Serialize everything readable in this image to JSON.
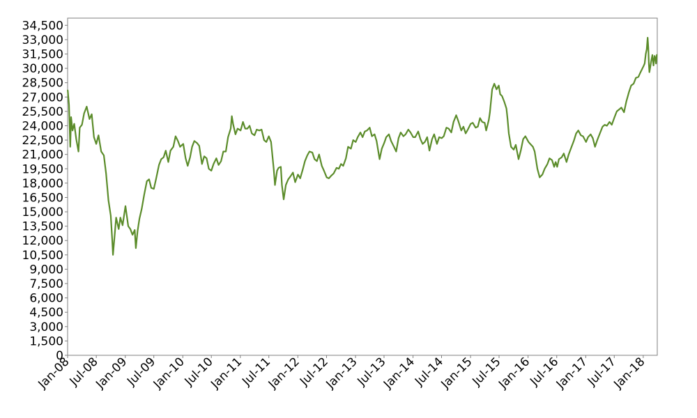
{
  "chart_data": {
    "type": "line",
    "title": "",
    "xlabel": "",
    "ylabel": "",
    "xlim": [
      "2008-01-01",
      "2018-03-31"
    ],
    "ylim": [
      0,
      35250
    ],
    "y_ticks": [
      0,
      1500,
      3000,
      4500,
      6000,
      7500,
      9000,
      10500,
      12000,
      13500,
      15000,
      16500,
      18000,
      19500,
      21000,
      22500,
      24000,
      25500,
      27000,
      28500,
      30000,
      31500,
      33000,
      34500
    ],
    "y_tick_labels": [
      "0",
      "1,500",
      "3,000",
      "4,500",
      "6,000",
      "7,500",
      "9,000",
      "10,500",
      "12,000",
      "13,500",
      "15,000",
      "16,500",
      "18,000",
      "19,500",
      "21,000",
      "22,500",
      "24,000",
      "25,500",
      "27,000",
      "28,500",
      "30,000",
      "31,500",
      "33,000",
      "34,500"
    ],
    "x_ticks": [
      "2008-01-01",
      "2008-07-01",
      "2009-01-01",
      "2009-07-01",
      "2010-01-01",
      "2010-07-01",
      "2011-01-01",
      "2011-07-01",
      "2012-01-01",
      "2012-07-01",
      "2013-01-01",
      "2013-07-01",
      "2014-01-01",
      "2014-07-01",
      "2015-01-01",
      "2015-07-01",
      "2016-01-01",
      "2016-07-01",
      "2017-01-01",
      "2017-07-01",
      "2018-01-01"
    ],
    "x_tick_labels": [
      "Jan-08",
      "Jul-08",
      "Jan-09",
      "Jul-09",
      "Jan-10",
      "Jul-10",
      "Jan-11",
      "Jul-11",
      "Jan-12",
      "Jul-12",
      "Jan-13",
      "Jul-13",
      "Jan-14",
      "Jul-14",
      "Jan-15",
      "Jul-15",
      "Jan-16",
      "Jul-16",
      "Jan-17",
      "Jul-17",
      "Jan-18"
    ],
    "grid": false,
    "legend": "none",
    "line_color": "#5b8c2a",
    "series": [
      {
        "x": [
          "2008-01-02",
          "2008-01-10",
          "2008-01-18",
          "2008-01-23",
          "2008-02-01",
          "2008-02-12",
          "2008-02-25",
          "2008-03-10",
          "2008-03-18",
          "2008-04-01",
          "2008-04-15",
          "2008-05-01",
          "2008-05-19",
          "2008-06-02",
          "2008-06-16",
          "2008-07-01",
          "2008-07-15",
          "2008-08-01",
          "2008-08-18",
          "2008-09-01",
          "2008-09-16",
          "2008-10-01",
          "2008-10-10",
          "2008-10-15",
          "2008-10-27",
          "2008-11-04",
          "2008-11-20",
          "2008-12-01",
          "2008-12-15",
          "2009-01-02",
          "2009-01-20",
          "2009-02-02",
          "2009-02-16",
          "2009-03-02",
          "2009-03-09",
          "2009-03-20",
          "2009-04-01",
          "2009-04-15",
          "2009-05-01",
          "2009-05-18",
          "2009-06-01",
          "2009-06-15",
          "2009-07-01",
          "2009-07-15",
          "2009-08-03",
          "2009-08-17",
          "2009-09-01",
          "2009-09-15",
          "2009-10-01",
          "2009-10-15",
          "2009-11-02",
          "2009-11-16",
          "2009-12-01",
          "2009-12-15",
          "2010-01-04",
          "2010-01-19",
          "2010-02-01",
          "2010-02-16",
          "2010-03-01",
          "2010-03-15",
          "2010-04-01",
          "2010-04-15",
          "2010-05-03",
          "2010-05-17",
          "2010-06-01",
          "2010-06-15",
          "2010-07-01",
          "2010-07-15",
          "2010-08-02",
          "2010-08-16",
          "2010-09-01",
          "2010-09-15",
          "2010-10-01",
          "2010-10-15",
          "2010-11-01",
          "2010-11-08",
          "2010-11-16",
          "2010-12-01",
          "2010-12-15",
          "2011-01-03",
          "2011-01-18",
          "2011-02-01",
          "2011-02-15",
          "2011-03-01",
          "2011-03-15",
          "2011-04-01",
          "2011-04-15",
          "2011-05-02",
          "2011-05-16",
          "2011-06-01",
          "2011-06-15",
          "2011-07-01",
          "2011-07-15",
          "2011-08-01",
          "2011-08-09",
          "2011-08-22",
          "2011-09-01",
          "2011-09-15",
          "2011-09-22",
          "2011-10-03",
          "2011-10-17",
          "2011-11-01",
          "2011-11-15",
          "2011-12-01",
          "2011-12-15",
          "2012-01-02",
          "2012-01-16",
          "2012-02-01",
          "2012-02-15",
          "2012-03-01",
          "2012-03-15",
          "2012-04-02",
          "2012-04-16",
          "2012-05-01",
          "2012-05-15",
          "2012-06-01",
          "2012-06-15",
          "2012-07-02",
          "2012-07-16",
          "2012-08-01",
          "2012-08-15",
          "2012-09-03",
          "2012-09-17",
          "2012-10-01",
          "2012-10-15",
          "2012-11-01",
          "2012-11-15",
          "2012-12-03",
          "2012-12-17",
          "2013-01-02",
          "2013-01-15",
          "2013-02-01",
          "2013-02-15",
          "2013-03-01",
          "2013-03-15",
          "2013-04-01",
          "2013-04-15",
          "2013-05-02",
          "2013-05-15",
          "2013-06-03",
          "2013-06-17",
          "2013-07-02",
          "2013-07-15",
          "2013-08-01",
          "2013-08-15",
          "2013-09-02",
          "2013-09-16",
          "2013-10-01",
          "2013-10-15",
          "2013-11-01",
          "2013-11-15",
          "2013-12-02",
          "2013-12-16",
          "2014-01-02",
          "2014-01-15",
          "2014-02-03",
          "2014-02-17",
          "2014-03-03",
          "2014-03-17",
          "2014-04-01",
          "2014-04-15",
          "2014-05-02",
          "2014-05-15",
          "2014-06-02",
          "2014-06-16",
          "2014-07-02",
          "2014-07-15",
          "2014-08-01",
          "2014-08-15",
          "2014-09-01",
          "2014-09-15",
          "2014-10-02",
          "2014-10-15",
          "2014-11-03",
          "2014-11-17",
          "2014-12-01",
          "2014-12-15",
          "2015-01-02",
          "2015-01-15",
          "2015-02-02",
          "2015-02-16",
          "2015-03-02",
          "2015-03-16",
          "2015-04-01",
          "2015-04-10",
          "2015-04-27",
          "2015-05-04",
          "2015-05-18",
          "2015-06-01",
          "2015-06-15",
          "2015-06-29",
          "2015-07-08",
          "2015-07-20",
          "2015-08-03",
          "2015-08-17",
          "2015-08-24",
          "2015-09-01",
          "2015-09-15",
          "2015-10-02",
          "2015-10-15",
          "2015-11-02",
          "2015-11-16",
          "2015-12-01",
          "2015-12-15",
          "2016-01-04",
          "2016-01-15",
          "2016-02-01",
          "2016-02-12",
          "2016-02-29",
          "2016-03-15",
          "2016-04-01",
          "2016-04-15",
          "2016-05-03",
          "2016-05-16",
          "2016-06-01",
          "2016-06-15",
          "2016-06-24",
          "2016-07-04",
          "2016-07-15",
          "2016-08-01",
          "2016-08-15",
          "2016-09-01",
          "2016-09-15",
          "2016-10-03",
          "2016-10-17",
          "2016-11-01",
          "2016-11-15",
          "2016-12-01",
          "2016-12-15",
          "2017-01-03",
          "2017-01-16",
          "2017-02-01",
          "2017-02-15",
          "2017-03-01",
          "2017-03-15",
          "2017-04-03",
          "2017-04-18",
          "2017-05-02",
          "2017-05-15",
          "2017-06-01",
          "2017-06-15",
          "2017-07-03",
          "2017-07-17",
          "2017-08-01",
          "2017-08-15",
          "2017-09-01",
          "2017-09-15",
          "2017-10-02",
          "2017-10-16",
          "2017-11-01",
          "2017-11-15",
          "2017-12-01",
          "2017-12-15",
          "2018-01-02",
          "2018-01-10",
          "2018-01-17",
          "2018-01-23",
          "2018-01-29",
          "2018-02-02",
          "2018-02-06",
          "2018-02-09",
          "2018-02-15",
          "2018-02-21",
          "2018-02-28",
          "2018-03-07",
          "2018-03-14",
          "2018-03-20",
          "2018-03-23",
          "2018-03-28"
        ],
        "y": [
          27700,
          26200,
          21800,
          24900,
          23500,
          24200,
          22600,
          21300,
          23800,
          24100,
          25300,
          26000,
          24700,
          25200,
          22800,
          22100,
          23000,
          21300,
          20900,
          19000,
          16200,
          14600,
          12100,
          10500,
          12800,
          14400,
          13200,
          14400,
          13600,
          15600,
          13500,
          13200,
          12600,
          13100,
          11200,
          13000,
          14300,
          15300,
          16800,
          18200,
          18400,
          17500,
          17400,
          18400,
          19900,
          20500,
          20700,
          21400,
          20200,
          21400,
          21800,
          22900,
          22400,
          21800,
          22100,
          20600,
          19800,
          20700,
          21800,
          22400,
          22200,
          21900,
          20000,
          20800,
          20600,
          19500,
          19300,
          20000,
          20600,
          19900,
          20300,
          21300,
          21300,
          22800,
          23700,
          25000,
          24200,
          23100,
          23700,
          23500,
          24400,
          23700,
          23700,
          24000,
          23200,
          23000,
          23600,
          23500,
          23600,
          22500,
          22300,
          22900,
          22300,
          19500,
          17800,
          19300,
          19600,
          19700,
          17800,
          16300,
          17800,
          18400,
          18700,
          19100,
          18100,
          18900,
          18500,
          19400,
          20300,
          20900,
          21300,
          21200,
          20500,
          20300,
          21000,
          19800,
          19300,
          18600,
          18500,
          18800,
          19000,
          19600,
          19500,
          20000,
          19800,
          20600,
          21800,
          21600,
          22500,
          22300,
          22800,
          23300,
          22800,
          23400,
          23500,
          23800,
          22900,
          23100,
          22400,
          20500,
          21600,
          22200,
          22800,
          23100,
          22400,
          21800,
          21300,
          22700,
          23300,
          22900,
          23100,
          23600,
          23300,
          22800,
          22800,
          23400,
          22600,
          22100,
          22300,
          22800,
          21400,
          22600,
          23100,
          22100,
          22800,
          22700,
          22900,
          23800,
          23700,
          23300,
          24400,
          25100,
          24500,
          23500,
          23900,
          23200,
          23600,
          24200,
          24300,
          23800,
          23900,
          24800,
          24400,
          24300,
          23500,
          24600,
          25400,
          27800,
          28400,
          27800,
          28200,
          27300,
          27100,
          26500,
          25800,
          24700,
          23200,
          21800,
          21500,
          22000,
          20500,
          21400,
          22600,
          22900,
          22300,
          22100,
          21800,
          21300,
          19500,
          18600,
          18900,
          19500,
          20000,
          20600,
          20400,
          19700,
          20200,
          19700,
          20500,
          20700,
          21100,
          20200,
          21000,
          21800,
          22400,
          23200,
          23500,
          23000,
          22900,
          22300,
          22800,
          23100,
          22700,
          21800,
          22500,
          23300,
          23900,
          24100,
          24000,
          24400,
          24100,
          24900,
          25500,
          25700,
          25900,
          25400,
          26500,
          27500,
          28200,
          28400,
          29000,
          29100,
          29600,
          30200,
          30500,
          31500,
          32000,
          33200,
          32200,
          30400,
          29600,
          30200,
          30800,
          31400,
          30300,
          31300,
          31000,
          30500,
          31400
        ]
      }
    ]
  }
}
